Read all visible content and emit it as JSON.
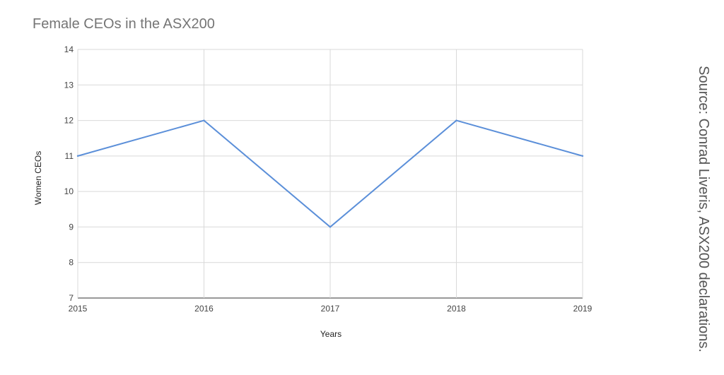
{
  "chart_data": {
    "type": "line",
    "title": "Female CEOs in the ASX200",
    "xlabel": "Years",
    "ylabel": "Women CEOs",
    "x": [
      "2015",
      "2016",
      "2017",
      "2018",
      "2019"
    ],
    "series": [
      {
        "values": [
          11,
          12,
          9,
          12,
          11
        ]
      }
    ],
    "ylim": [
      7,
      14
    ],
    "yticks": [
      "7",
      "8",
      "9",
      "10",
      "11",
      "12",
      "13",
      "14"
    ],
    "grid": true,
    "line_color": "#5b8fd9",
    "grid_color": "#d9d9d9"
  },
  "source": "Source: Conrad Liveris, ASX200 declarations."
}
